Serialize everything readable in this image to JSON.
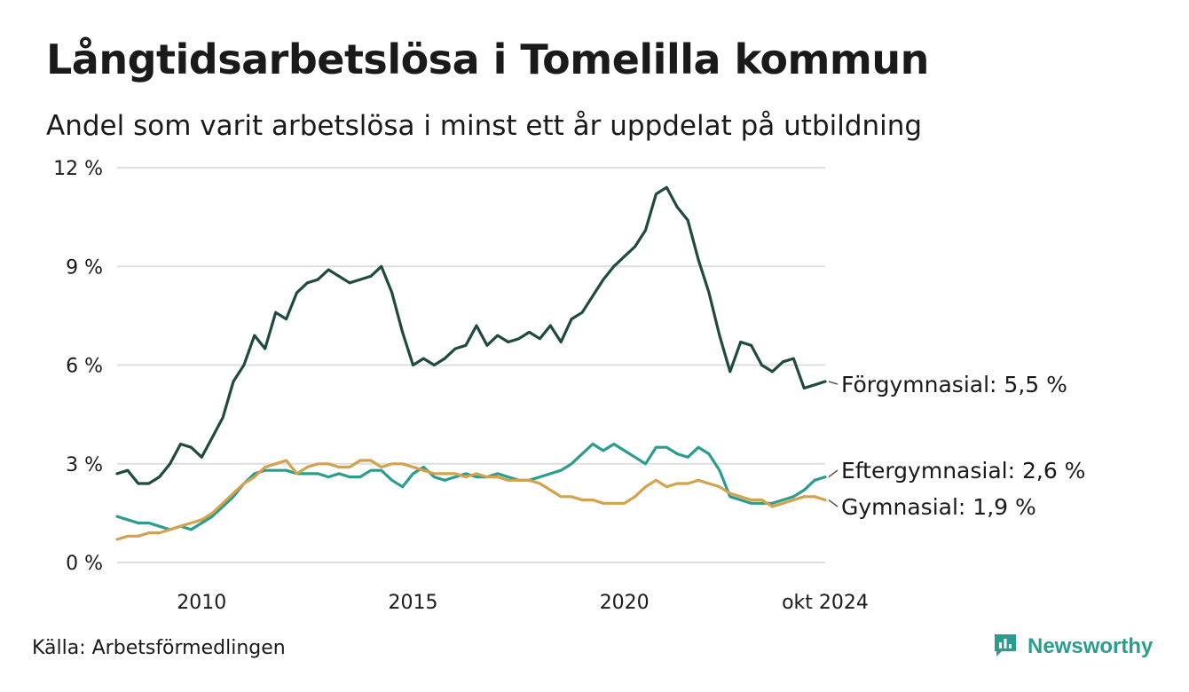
{
  "title": "Långtidsarbetslösa i Tomelilla kommun",
  "subtitle": "Andel som varit arbetslösa i minst ett år uppdelat på utbildning",
  "source": "Källa: Arbetsförmedlingen",
  "brand": "Newsworthy",
  "colors": {
    "forgymnasial": "#1f4a3f",
    "eftergymnasial": "#2a9d8f",
    "gymnasial": "#d4a24c",
    "grid": "#dedede",
    "brand": "#2a9d8f"
  },
  "icons": {
    "brand_logo": "newsworthy-logo-icon"
  },
  "chart_data": {
    "type": "line",
    "title": "Långtidsarbetslösa i Tomelilla kommun",
    "subtitle": "Andel som varit arbetslösa i minst ett år uppdelat på utbildning",
    "x_range": [
      "2008-01",
      "2024-10"
    ],
    "x_ticks": [
      {
        "date": "2010-01",
        "label": "2010"
      },
      {
        "date": "2015-01",
        "label": "2015"
      },
      {
        "date": "2020-01",
        "label": "2020"
      },
      {
        "date": "2024-10",
        "label": "okt 2024"
      }
    ],
    "ylim": [
      0,
      12
    ],
    "y_ticks": [
      {
        "value": 0,
        "label": "0 %"
      },
      {
        "value": 3,
        "label": "3 %"
      },
      {
        "value": 6,
        "label": "6 %"
      },
      {
        "value": 9,
        "label": "9 %"
      },
      {
        "value": 12,
        "label": "12 %"
      }
    ],
    "grid": true,
    "series": [
      {
        "name": "Förgymnasial",
        "end_label": "Förgymnasial: 5,5 %",
        "color": "#1f4a3f",
        "points": [
          [
            "2008-01",
            2.7
          ],
          [
            "2008-04",
            2.8
          ],
          [
            "2008-07",
            2.4
          ],
          [
            "2008-10",
            2.4
          ],
          [
            "2009-01",
            2.6
          ],
          [
            "2009-04",
            3.0
          ],
          [
            "2009-07",
            3.6
          ],
          [
            "2009-10",
            3.5
          ],
          [
            "2010-01",
            3.2
          ],
          [
            "2010-04",
            3.8
          ],
          [
            "2010-07",
            4.4
          ],
          [
            "2010-10",
            5.5
          ],
          [
            "2011-01",
            6.0
          ],
          [
            "2011-04",
            6.9
          ],
          [
            "2011-07",
            6.5
          ],
          [
            "2011-10",
            7.6
          ],
          [
            "2012-01",
            7.4
          ],
          [
            "2012-04",
            8.2
          ],
          [
            "2012-07",
            8.5
          ],
          [
            "2012-10",
            8.6
          ],
          [
            "2013-01",
            8.9
          ],
          [
            "2013-04",
            8.7
          ],
          [
            "2013-07",
            8.5
          ],
          [
            "2013-10",
            8.6
          ],
          [
            "2014-01",
            8.7
          ],
          [
            "2014-04",
            9.0
          ],
          [
            "2014-07",
            8.2
          ],
          [
            "2014-10",
            7.0
          ],
          [
            "2015-01",
            6.0
          ],
          [
            "2015-04",
            6.2
          ],
          [
            "2015-07",
            6.0
          ],
          [
            "2015-10",
            6.2
          ],
          [
            "2016-01",
            6.5
          ],
          [
            "2016-04",
            6.6
          ],
          [
            "2016-07",
            7.2
          ],
          [
            "2016-10",
            6.6
          ],
          [
            "2017-01",
            6.9
          ],
          [
            "2017-04",
            6.7
          ],
          [
            "2017-07",
            6.8
          ],
          [
            "2017-10",
            7.0
          ],
          [
            "2018-01",
            6.8
          ],
          [
            "2018-04",
            7.2
          ],
          [
            "2018-07",
            6.7
          ],
          [
            "2018-10",
            7.4
          ],
          [
            "2019-01",
            7.6
          ],
          [
            "2019-04",
            8.1
          ],
          [
            "2019-07",
            8.6
          ],
          [
            "2019-10",
            9.0
          ],
          [
            "2020-01",
            9.3
          ],
          [
            "2020-04",
            9.6
          ],
          [
            "2020-07",
            10.1
          ],
          [
            "2020-10",
            11.2
          ],
          [
            "2021-01",
            11.4
          ],
          [
            "2021-04",
            10.8
          ],
          [
            "2021-07",
            10.4
          ],
          [
            "2021-10",
            9.2
          ],
          [
            "2022-01",
            8.2
          ],
          [
            "2022-04",
            6.9
          ],
          [
            "2022-07",
            5.8
          ],
          [
            "2022-10",
            6.7
          ],
          [
            "2023-01",
            6.6
          ],
          [
            "2023-04",
            6.0
          ],
          [
            "2023-07",
            5.8
          ],
          [
            "2023-10",
            6.1
          ],
          [
            "2024-01",
            6.2
          ],
          [
            "2024-04",
            5.3
          ],
          [
            "2024-07",
            5.4
          ],
          [
            "2024-10",
            5.5
          ]
        ]
      },
      {
        "name": "Eftergymnasial",
        "end_label": "Eftergymnasial: 2,6 %",
        "color": "#2a9d8f",
        "points": [
          [
            "2008-01",
            1.4
          ],
          [
            "2008-04",
            1.3
          ],
          [
            "2008-07",
            1.2
          ],
          [
            "2008-10",
            1.2
          ],
          [
            "2009-01",
            1.1
          ],
          [
            "2009-04",
            1.0
          ],
          [
            "2009-07",
            1.1
          ],
          [
            "2009-10",
            1.0
          ],
          [
            "2010-01",
            1.2
          ],
          [
            "2010-04",
            1.4
          ],
          [
            "2010-07",
            1.7
          ],
          [
            "2010-10",
            2.0
          ],
          [
            "2011-01",
            2.4
          ],
          [
            "2011-04",
            2.7
          ],
          [
            "2011-07",
            2.8
          ],
          [
            "2011-10",
            2.8
          ],
          [
            "2012-01",
            2.8
          ],
          [
            "2012-04",
            2.7
          ],
          [
            "2012-07",
            2.7
          ],
          [
            "2012-10",
            2.7
          ],
          [
            "2013-01",
            2.6
          ],
          [
            "2013-04",
            2.7
          ],
          [
            "2013-07",
            2.6
          ],
          [
            "2013-10",
            2.6
          ],
          [
            "2014-01",
            2.8
          ],
          [
            "2014-04",
            2.8
          ],
          [
            "2014-07",
            2.5
          ],
          [
            "2014-10",
            2.3
          ],
          [
            "2015-01",
            2.7
          ],
          [
            "2015-04",
            2.9
          ],
          [
            "2015-07",
            2.6
          ],
          [
            "2015-10",
            2.5
          ],
          [
            "2016-01",
            2.6
          ],
          [
            "2016-04",
            2.7
          ],
          [
            "2016-07",
            2.6
          ],
          [
            "2016-10",
            2.6
          ],
          [
            "2017-01",
            2.7
          ],
          [
            "2017-04",
            2.6
          ],
          [
            "2017-07",
            2.5
          ],
          [
            "2017-10",
            2.5
          ],
          [
            "2018-01",
            2.6
          ],
          [
            "2018-04",
            2.7
          ],
          [
            "2018-07",
            2.8
          ],
          [
            "2018-10",
            3.0
          ],
          [
            "2019-01",
            3.3
          ],
          [
            "2019-04",
            3.6
          ],
          [
            "2019-07",
            3.4
          ],
          [
            "2019-10",
            3.6
          ],
          [
            "2020-01",
            3.4
          ],
          [
            "2020-04",
            3.2
          ],
          [
            "2020-07",
            3.0
          ],
          [
            "2020-10",
            3.5
          ],
          [
            "2021-01",
            3.5
          ],
          [
            "2021-04",
            3.3
          ],
          [
            "2021-07",
            3.2
          ],
          [
            "2021-10",
            3.5
          ],
          [
            "2022-01",
            3.3
          ],
          [
            "2022-04",
            2.8
          ],
          [
            "2022-07",
            2.0
          ],
          [
            "2022-10",
            1.9
          ],
          [
            "2023-01",
            1.8
          ],
          [
            "2023-04",
            1.8
          ],
          [
            "2023-07",
            1.8
          ],
          [
            "2023-10",
            1.9
          ],
          [
            "2024-01",
            2.0
          ],
          [
            "2024-04",
            2.2
          ],
          [
            "2024-07",
            2.5
          ],
          [
            "2024-10",
            2.6
          ]
        ]
      },
      {
        "name": "Gymnasial",
        "end_label": "Gymnasial: 1,9 %",
        "color": "#d4a24c",
        "points": [
          [
            "2008-01",
            0.7
          ],
          [
            "2008-04",
            0.8
          ],
          [
            "2008-07",
            0.8
          ],
          [
            "2008-10",
            0.9
          ],
          [
            "2009-01",
            0.9
          ],
          [
            "2009-04",
            1.0
          ],
          [
            "2009-07",
            1.1
          ],
          [
            "2009-10",
            1.2
          ],
          [
            "2010-01",
            1.3
          ],
          [
            "2010-04",
            1.5
          ],
          [
            "2010-07",
            1.8
          ],
          [
            "2010-10",
            2.1
          ],
          [
            "2011-01",
            2.4
          ],
          [
            "2011-04",
            2.6
          ],
          [
            "2011-07",
            2.9
          ],
          [
            "2011-10",
            3.0
          ],
          [
            "2012-01",
            3.1
          ],
          [
            "2012-04",
            2.7
          ],
          [
            "2012-07",
            2.9
          ],
          [
            "2012-10",
            3.0
          ],
          [
            "2013-01",
            3.0
          ],
          [
            "2013-04",
            2.9
          ],
          [
            "2013-07",
            2.9
          ],
          [
            "2013-10",
            3.1
          ],
          [
            "2014-01",
            3.1
          ],
          [
            "2014-04",
            2.9
          ],
          [
            "2014-07",
            3.0
          ],
          [
            "2014-10",
            3.0
          ],
          [
            "2015-01",
            2.9
          ],
          [
            "2015-04",
            2.8
          ],
          [
            "2015-07",
            2.7
          ],
          [
            "2015-10",
            2.7
          ],
          [
            "2016-01",
            2.7
          ],
          [
            "2016-04",
            2.6
          ],
          [
            "2016-07",
            2.7
          ],
          [
            "2016-10",
            2.6
          ],
          [
            "2017-01",
            2.6
          ],
          [
            "2017-04",
            2.5
          ],
          [
            "2017-07",
            2.5
          ],
          [
            "2017-10",
            2.5
          ],
          [
            "2018-01",
            2.4
          ],
          [
            "2018-04",
            2.2
          ],
          [
            "2018-07",
            2.0
          ],
          [
            "2018-10",
            2.0
          ],
          [
            "2019-01",
            1.9
          ],
          [
            "2019-04",
            1.9
          ],
          [
            "2019-07",
            1.8
          ],
          [
            "2019-10",
            1.8
          ],
          [
            "2020-01",
            1.8
          ],
          [
            "2020-04",
            2.0
          ],
          [
            "2020-07",
            2.3
          ],
          [
            "2020-10",
            2.5
          ],
          [
            "2021-01",
            2.3
          ],
          [
            "2021-04",
            2.4
          ],
          [
            "2021-07",
            2.4
          ],
          [
            "2021-10",
            2.5
          ],
          [
            "2022-01",
            2.4
          ],
          [
            "2022-04",
            2.3
          ],
          [
            "2022-07",
            2.1
          ],
          [
            "2022-10",
            2.0
          ],
          [
            "2023-01",
            1.9
          ],
          [
            "2023-04",
            1.9
          ],
          [
            "2023-07",
            1.7
          ],
          [
            "2023-10",
            1.8
          ],
          [
            "2024-01",
            1.9
          ],
          [
            "2024-04",
            2.0
          ],
          [
            "2024-07",
            2.0
          ],
          [
            "2024-10",
            1.9
          ]
        ]
      }
    ]
  }
}
